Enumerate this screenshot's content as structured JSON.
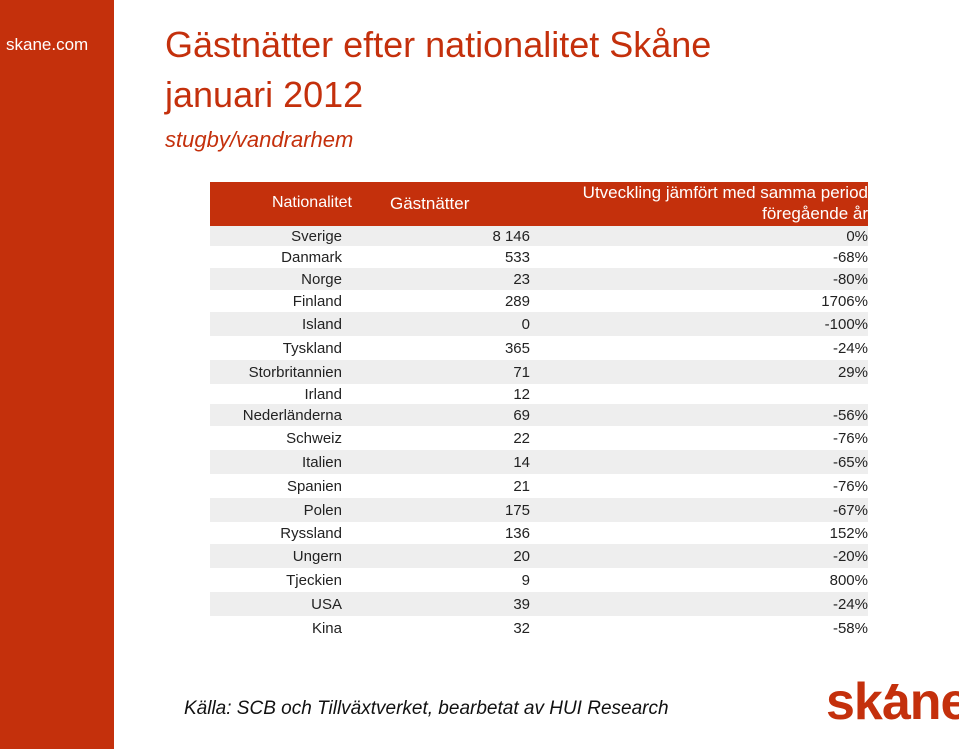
{
  "brand": "skane.com",
  "title_line1": "Gästnätter efter nationalitet Skåne",
  "title_line2": "januari 2012",
  "subtitle": "stugby/vandrarhem",
  "table": {
    "headers": {
      "nationality": "Nationalitet",
      "guest_nights": "Gästnätter",
      "development_line1": "Utveckling jämfört med samma period",
      "development_line2": "föregående år"
    },
    "rows": [
      {
        "nationality": "Sverige",
        "guest_nights": "8 146",
        "development": "0%"
      },
      {
        "nationality": "Danmark",
        "guest_nights": "533",
        "development": "-68%"
      },
      {
        "nationality": "Norge",
        "guest_nights": "23",
        "development": "-80%"
      },
      {
        "nationality": "Finland",
        "guest_nights": "289",
        "development": "1706%"
      },
      {
        "nationality": "Island",
        "guest_nights": "0",
        "development": "-100%"
      },
      {
        "nationality": "Tyskland",
        "guest_nights": "365",
        "development": "-24%"
      },
      {
        "nationality": "Storbritannien",
        "guest_nights": "71",
        "development": "29%"
      },
      {
        "nationality": "Irland",
        "guest_nights": "12",
        "development": ""
      },
      {
        "nationality": "Nederländerna",
        "guest_nights": "69",
        "development": "-56%"
      },
      {
        "nationality": "Schweiz",
        "guest_nights": "22",
        "development": "-76%"
      },
      {
        "nationality": "Italien",
        "guest_nights": "14",
        "development": "-65%"
      },
      {
        "nationality": "Spanien",
        "guest_nights": "21",
        "development": "-76%"
      },
      {
        "nationality": "Polen",
        "guest_nights": "175",
        "development": "-67%"
      },
      {
        "nationality": "Ryssland",
        "guest_nights": "136",
        "development": "152%"
      },
      {
        "nationality": "Ungern",
        "guest_nights": "20",
        "development": "-20%"
      },
      {
        "nationality": "Tjeckien",
        "guest_nights": "9",
        "development": "800%"
      },
      {
        "nationality": "USA",
        "guest_nights": "39",
        "development": "-24%"
      },
      {
        "nationality": "Kina",
        "guest_nights": "32",
        "development": "-58%"
      }
    ]
  },
  "source": "Källa: SCB och Tillväxtverket, bearbetat av HUI Research",
  "logo_text": "skane"
}
